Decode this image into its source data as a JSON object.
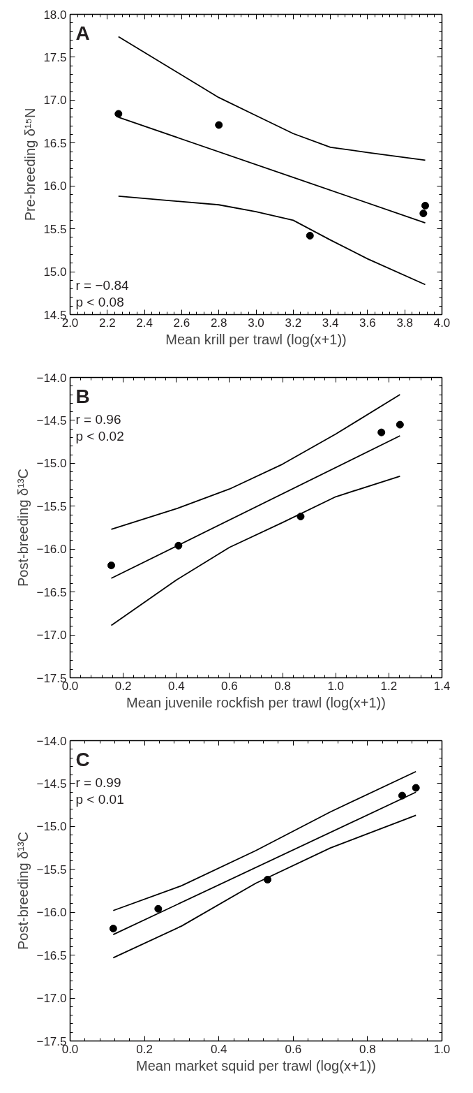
{
  "chart_data": [
    {
      "type": "scatter",
      "title": "A",
      "xlabel": "Mean krill per trawl (log(x+1))",
      "ylabel": "Pre-breeding δ¹⁵N",
      "xlim": [
        2.0,
        4.0
      ],
      "ylim": [
        14.5,
        18.0
      ],
      "xticks": [
        {
          "value": 2.0,
          "label": "2.0"
        },
        {
          "value": 2.2,
          "label": "2.2"
        },
        {
          "value": 2.4,
          "label": "2.4"
        },
        {
          "value": 2.6,
          "label": "2.6"
        },
        {
          "value": 2.8,
          "label": "2.8"
        },
        {
          "value": 3.0,
          "label": "3.0"
        },
        {
          "value": 3.2,
          "label": "3.2"
        },
        {
          "value": 3.4,
          "label": "3.4"
        },
        {
          "value": 3.6,
          "label": "3.6"
        },
        {
          "value": 3.8,
          "label": "3.8"
        },
        {
          "value": 4.0,
          "label": "4.0"
        }
      ],
      "yticks": [
        {
          "value": 14.5,
          "label": "14.5"
        },
        {
          "value": 15.0,
          "label": "15.0"
        },
        {
          "value": 15.5,
          "label": "15.5"
        },
        {
          "value": 16.0,
          "label": "16.0"
        },
        {
          "value": 16.5,
          "label": "16.5"
        },
        {
          "value": 17.0,
          "label": "17.0"
        },
        {
          "value": 17.5,
          "label": "17.5"
        },
        {
          "value": 18.0,
          "label": "18.0"
        }
      ],
      "annotations": [
        "r = −0.84",
        "p < 0.08"
      ],
      "series": [
        {
          "marker": "circle",
          "color": "#000000",
          "x": [
            2.26,
            2.8,
            3.29,
            3.9,
            3.91
          ],
          "values": [
            16.84,
            16.71,
            15.42,
            15.68,
            15.77
          ]
        },
        {
          "type": "line",
          "marker": "none",
          "color": "#000000",
          "x": [
            2.26,
            3.91
          ],
          "values": [
            16.8,
            15.57
          ]
        },
        {
          "type": "line",
          "marker": "none",
          "color": "#000000",
          "x": [
            2.26,
            2.8,
            3.0,
            3.2,
            3.4,
            3.6,
            3.91
          ],
          "values": [
            17.74,
            17.03,
            16.82,
            16.61,
            16.45,
            16.39,
            16.3
          ]
        },
        {
          "type": "line",
          "marker": "none",
          "color": "#000000",
          "x": [
            2.26,
            2.8,
            3.0,
            3.2,
            3.4,
            3.6,
            3.91
          ],
          "values": [
            15.88,
            15.78,
            15.7,
            15.6,
            15.37,
            15.15,
            14.85
          ]
        }
      ]
    },
    {
      "type": "scatter",
      "title": "B",
      "xlabel": "Mean juvenile rockfish per trawl (log(x+1))",
      "ylabel": "Post-breeding δ¹³C",
      "xlim": [
        0.0,
        1.4
      ],
      "ylim": [
        -17.5,
        -14.0
      ],
      "xticks": [
        {
          "value": 0.0,
          "label": "0.0"
        },
        {
          "value": 0.2,
          "label": "0.2"
        },
        {
          "value": 0.4,
          "label": "0.4"
        },
        {
          "value": 0.6,
          "label": "0.6"
        },
        {
          "value": 0.8,
          "label": "0.8"
        },
        {
          "value": 1.0,
          "label": "1.0"
        },
        {
          "value": 1.2,
          "label": "1.2"
        },
        {
          "value": 1.4,
          "label": "1.4"
        }
      ],
      "yticks": [
        {
          "value": -17.5,
          "label": "−17.5"
        },
        {
          "value": -17.0,
          "label": "−17.0"
        },
        {
          "value": -16.5,
          "label": "−16.5"
        },
        {
          "value": -16.0,
          "label": "−16.0"
        },
        {
          "value": -15.5,
          "label": "−15.5"
        },
        {
          "value": -15.0,
          "label": "−15.0"
        },
        {
          "value": -14.5,
          "label": "−14.5"
        },
        {
          "value": -14.0,
          "label": "−14.0"
        }
      ],
      "annotations": [
        "r = 0.96",
        "p < 0.02"
      ],
      "series": [
        {
          "marker": "circle",
          "color": "#000000",
          "x": [
            0.155,
            0.408,
            0.868,
            1.172,
            1.242
          ],
          "values": [
            -16.19,
            -15.96,
            -15.62,
            -14.64,
            -14.55
          ]
        },
        {
          "type": "line",
          "marker": "none",
          "color": "#000000",
          "x": [
            0.155,
            1.242
          ],
          "values": [
            -16.34,
            -14.68
          ]
        },
        {
          "type": "line",
          "marker": "none",
          "color": "#000000",
          "x": [
            0.155,
            0.4,
            0.6,
            0.8,
            1.0,
            1.242
          ],
          "values": [
            -15.77,
            -15.53,
            -15.3,
            -15.01,
            -14.66,
            -14.2
          ]
        },
        {
          "type": "line",
          "marker": "none",
          "color": "#000000",
          "x": [
            0.155,
            0.4,
            0.6,
            0.8,
            1.0,
            1.242
          ],
          "values": [
            -16.89,
            -16.36,
            -15.98,
            -15.69,
            -15.39,
            -15.15
          ]
        }
      ]
    },
    {
      "type": "scatter",
      "title": "C",
      "xlabel": "Mean market squid per trawl (log(x+1))",
      "ylabel": "Post-breeding δ¹³C",
      "xlim": [
        0.0,
        1.0
      ],
      "ylim": [
        -17.5,
        -14.0
      ],
      "xticks": [
        {
          "value": 0.0,
          "label": "0.0"
        },
        {
          "value": 0.2,
          "label": "0.2"
        },
        {
          "value": 0.4,
          "label": "0.4"
        },
        {
          "value": 0.6,
          "label": "0.6"
        },
        {
          "value": 0.8,
          "label": "0.8"
        },
        {
          "value": 1.0,
          "label": "1.0"
        }
      ],
      "yticks": [
        {
          "value": -17.5,
          "label": "−17.5"
        },
        {
          "value": -17.0,
          "label": "−17.0"
        },
        {
          "value": -16.5,
          "label": "−16.5"
        },
        {
          "value": -16.0,
          "label": "−16.0"
        },
        {
          "value": -15.5,
          "label": "−15.5"
        },
        {
          "value": -15.0,
          "label": "−15.0"
        },
        {
          "value": -14.5,
          "label": "−14.5"
        },
        {
          "value": -14.0,
          "label": "−14.0"
        }
      ],
      "annotations": [
        "r = 0.99",
        "p < 0.01"
      ],
      "series": [
        {
          "marker": "circle",
          "color": "#000000",
          "x": [
            0.116,
            0.237,
            0.531,
            0.893,
            0.93
          ],
          "values": [
            -16.19,
            -15.96,
            -15.62,
            -14.64,
            -14.55
          ]
        },
        {
          "type": "line",
          "marker": "none",
          "color": "#000000",
          "x": [
            0.116,
            0.93
          ],
          "values": [
            -16.26,
            -14.6
          ]
        },
        {
          "type": "line",
          "marker": "none",
          "color": "#000000",
          "x": [
            0.116,
            0.3,
            0.5,
            0.7,
            0.93
          ],
          "values": [
            -15.98,
            -15.69,
            -15.28,
            -14.83,
            -14.36
          ]
        },
        {
          "type": "line",
          "marker": "none",
          "color": "#000000",
          "x": [
            0.116,
            0.3,
            0.5,
            0.7,
            0.93
          ],
          "values": [
            -16.53,
            -16.16,
            -15.66,
            -15.25,
            -14.87
          ]
        }
      ]
    }
  ]
}
